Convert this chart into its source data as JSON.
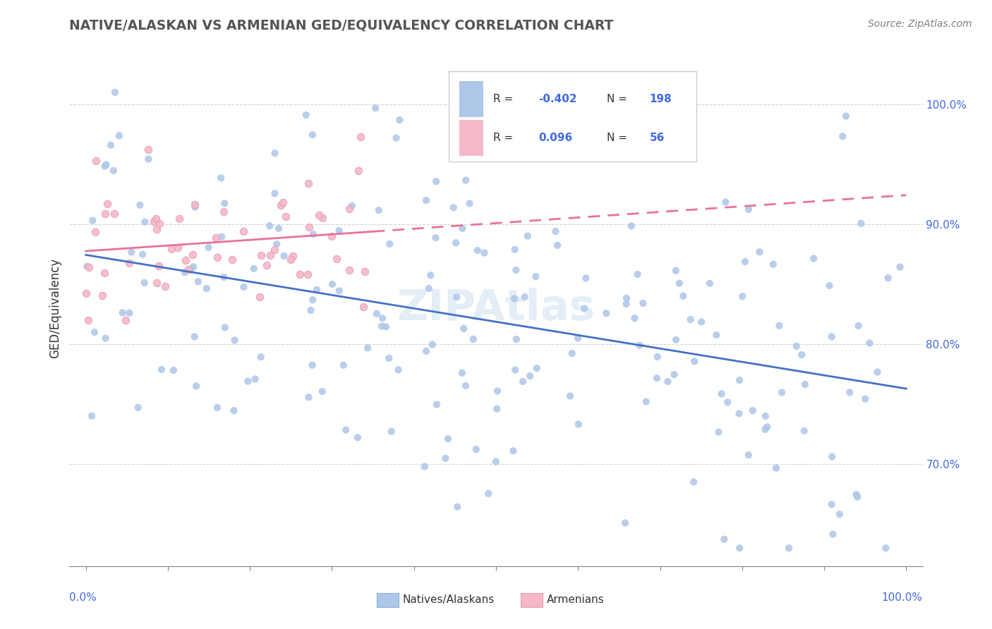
{
  "title": "NATIVE/ALASKAN VS ARMENIAN GED/EQUIVALENCY CORRELATION CHART",
  "source": "Source: ZipAtlas.com",
  "ylabel": "GED/Equivalency",
  "ytick_vals": [
    0.7,
    0.8,
    0.9,
    1.0
  ],
  "xlim": [
    -0.02,
    1.02
  ],
  "ylim": [
    0.615,
    1.045
  ],
  "native_color": "#aec6e8",
  "armenian_color": "#f4b8c8",
  "armenian_edge_color": "#e8a0b4",
  "native_line_color": "#4472c4",
  "armenian_line_color": "#e8729a",
  "legend_R_native": "-0.402",
  "legend_N_native": "198",
  "legend_R_armenian": "0.096",
  "legend_N_armenian": "56",
  "val_color": "#4169e1",
  "watermark": "ZIPAtlas",
  "grid_color": "#d0d0d0",
  "title_color": "#555555"
}
